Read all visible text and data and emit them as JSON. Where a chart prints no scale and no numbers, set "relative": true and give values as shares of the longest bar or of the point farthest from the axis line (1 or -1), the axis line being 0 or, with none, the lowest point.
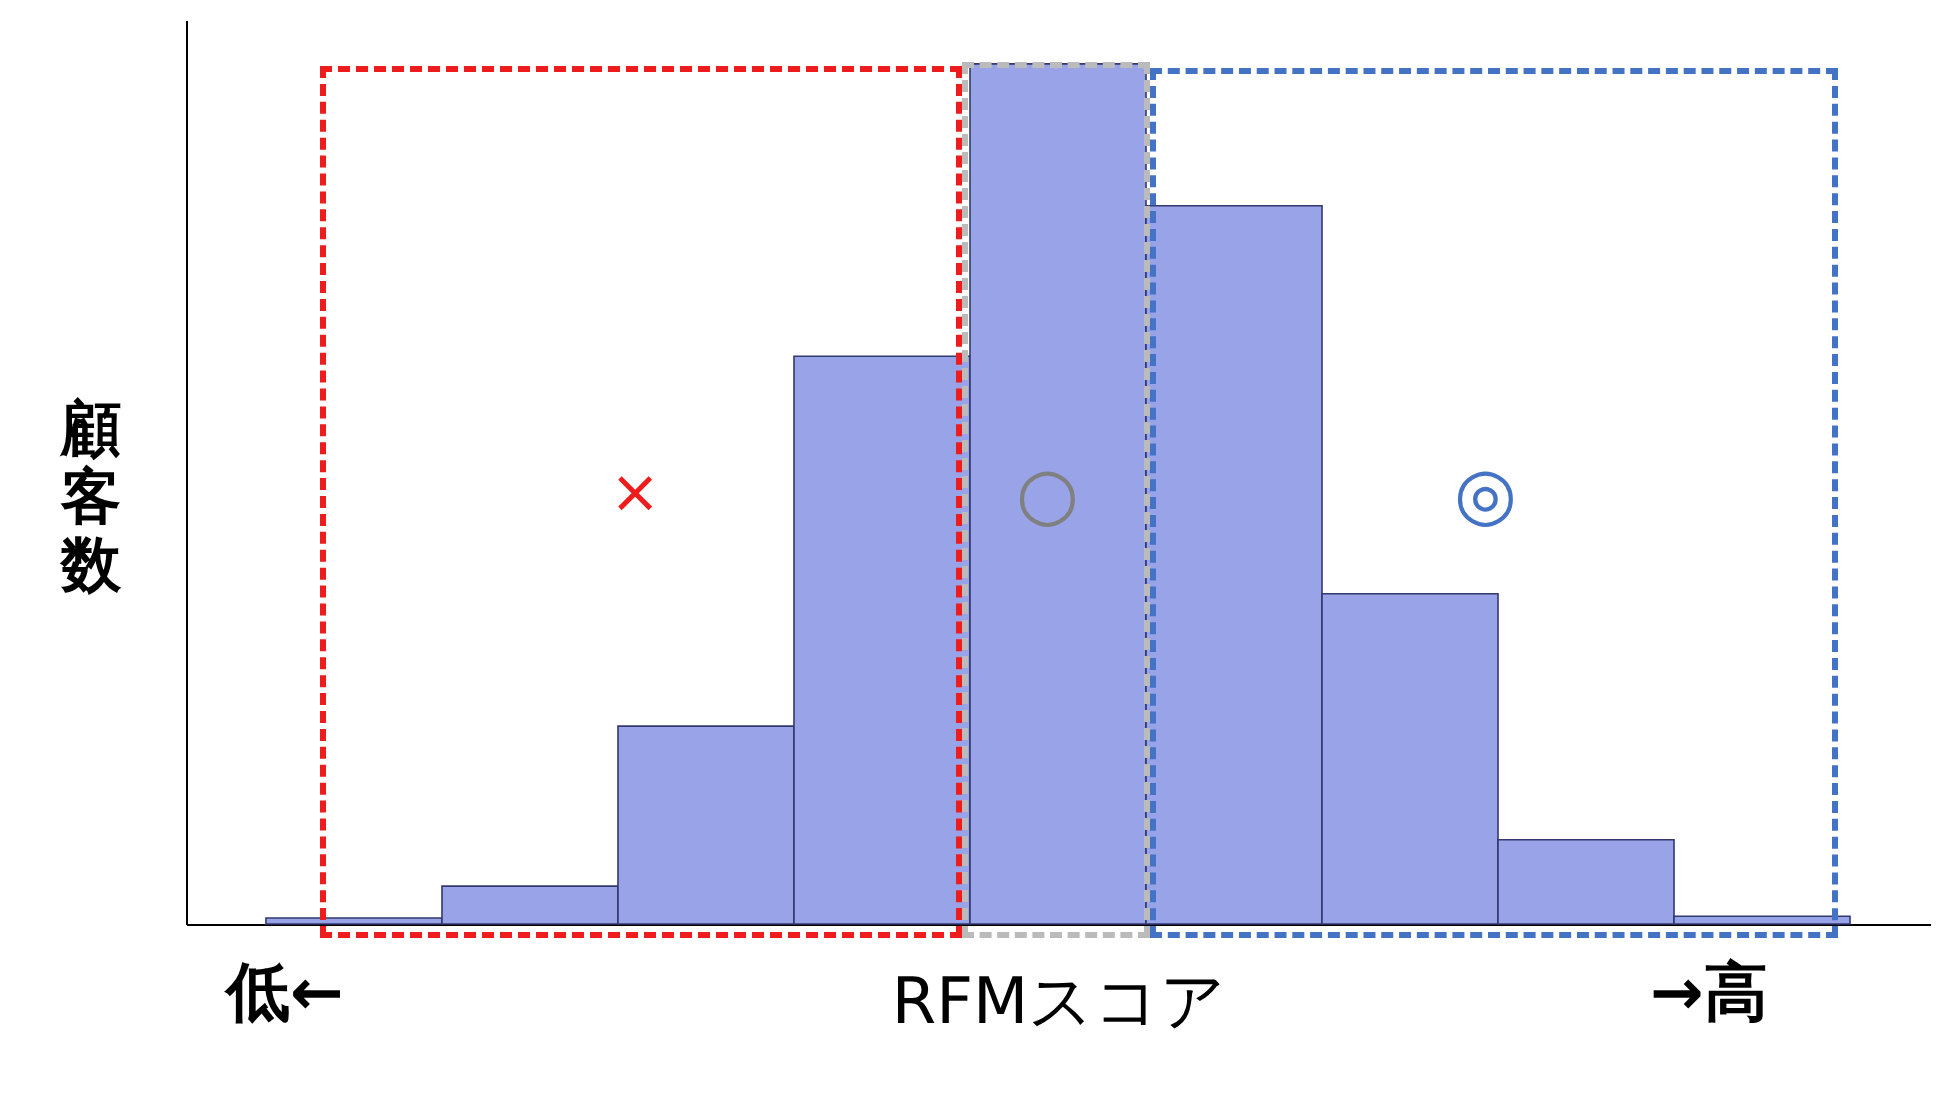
{
  "chart_data": {
    "type": "bar",
    "relative": true,
    "xlabel": "RFMスコア",
    "ylabel": "顧客数",
    "categories": [
      null,
      null,
      null,
      null,
      null,
      null,
      null,
      null,
      null
    ],
    "values": [
      0.007,
      0.044,
      0.23,
      0.66,
      1,
      0.835,
      0.384,
      0.098,
      0.009
    ],
    "color": "#99a3e8",
    "annotations": [
      "低←",
      "→高",
      "×",
      "○",
      "◎"
    ]
  }
}
